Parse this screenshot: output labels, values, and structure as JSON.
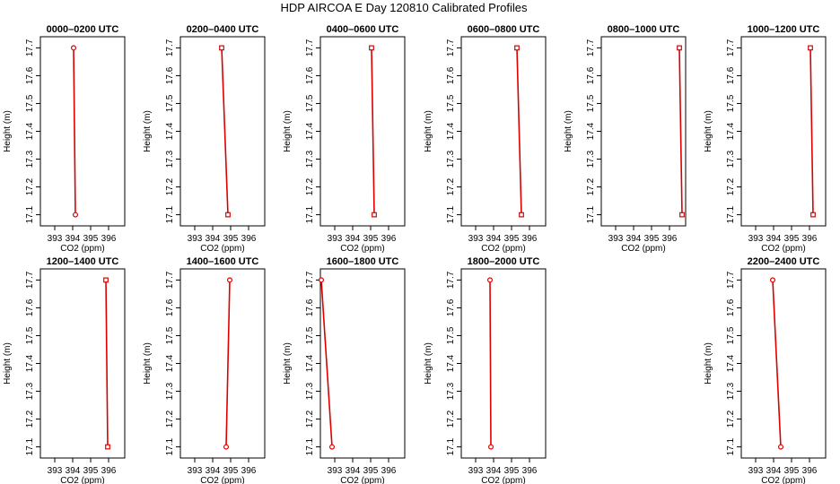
{
  "figure": {
    "title": "HDP AIRCOA E  Day 120810  Calibrated Profiles"
  },
  "style": {
    "line_color": "#dd0000",
    "marker_color": "#dd0000",
    "axis_color": "#000000"
  },
  "chart_data": [
    {
      "type": "line",
      "title": "0000–0200 UTC",
      "xlabel": "CO2 (ppm)",
      "ylabel": "Height (m)",
      "xlim": [
        392.2,
        396.9
      ],
      "ylim": [
        17.06,
        17.74
      ],
      "xticks": [
        "393",
        "394",
        "395",
        "396"
      ],
      "yticks": [
        "17.1",
        "17.2",
        "17.3",
        "17.4",
        "17.5",
        "17.6",
        "17.7"
      ],
      "grid": false,
      "marker": "circle",
      "series": [
        {
          "x": [
            394.05,
            394.15
          ],
          "y": [
            17.7,
            17.1
          ]
        }
      ]
    },
    {
      "type": "line",
      "title": "0200–0400 UTC",
      "xlabel": "CO2 (ppm)",
      "ylabel": "Height (m)",
      "xlim": [
        392.2,
        396.9
      ],
      "ylim": [
        17.06,
        17.74
      ],
      "xticks": [
        "393",
        "394",
        "395",
        "396"
      ],
      "yticks": [
        "17.1",
        "17.2",
        "17.3",
        "17.4",
        "17.5",
        "17.6",
        "17.7"
      ],
      "grid": false,
      "marker": "square",
      "series": [
        {
          "x": [
            394.5,
            394.85
          ],
          "y": [
            17.7,
            17.1
          ]
        }
      ]
    },
    {
      "type": "line",
      "title": "0400–0600 UTC",
      "xlabel": "CO2 (ppm)",
      "ylabel": "Height (m)",
      "xlim": [
        392.2,
        396.9
      ],
      "ylim": [
        17.06,
        17.74
      ],
      "xticks": [
        "393",
        "394",
        "395",
        "396"
      ],
      "yticks": [
        "17.1",
        "17.2",
        "17.3",
        "17.4",
        "17.5",
        "17.6",
        "17.7"
      ],
      "grid": false,
      "marker": "square",
      "series": [
        {
          "x": [
            395.05,
            395.2
          ],
          "y": [
            17.7,
            17.1
          ]
        }
      ]
    },
    {
      "type": "line",
      "title": "0600–0800 UTC",
      "xlabel": "CO2 (ppm)",
      "ylabel": "Height (m)",
      "xlim": [
        392.2,
        396.9
      ],
      "ylim": [
        17.06,
        17.74
      ],
      "xticks": [
        "393",
        "394",
        "395",
        "396"
      ],
      "yticks": [
        "17.1",
        "17.2",
        "17.3",
        "17.4",
        "17.5",
        "17.6",
        "17.7"
      ],
      "grid": false,
      "marker": "square",
      "series": [
        {
          "x": [
            395.3,
            395.55
          ],
          "y": [
            17.7,
            17.1
          ]
        }
      ]
    },
    {
      "type": "line",
      "title": "0800–1000 UTC",
      "xlabel": "CO2 (ppm)",
      "ylabel": "Height (m)",
      "xlim": [
        392.2,
        396.9
      ],
      "ylim": [
        17.06,
        17.74
      ],
      "xticks": [
        "393",
        "394",
        "395",
        "396"
      ],
      "yticks": [
        "17.1",
        "17.2",
        "17.3",
        "17.4",
        "17.5",
        "17.6",
        "17.7"
      ],
      "grid": false,
      "marker": "square",
      "series": [
        {
          "x": [
            396.55,
            396.7
          ],
          "y": [
            17.7,
            17.1
          ]
        }
      ]
    },
    {
      "type": "line",
      "title": "1000–1200 UTC",
      "xlabel": "CO2 (ppm)",
      "ylabel": "Height (m)",
      "xlim": [
        392.2,
        396.9
      ],
      "ylim": [
        17.06,
        17.74
      ],
      "xticks": [
        "393",
        "394",
        "395",
        "396"
      ],
      "yticks": [
        "17.1",
        "17.2",
        "17.3",
        "17.4",
        "17.5",
        "17.6",
        "17.7"
      ],
      "grid": false,
      "marker": "square",
      "series": [
        {
          "x": [
            396.05,
            396.2
          ],
          "y": [
            17.7,
            17.1
          ]
        }
      ]
    },
    {
      "type": "line",
      "title": "1200–1400 UTC",
      "xlabel": "CO2 (ppm)",
      "ylabel": "Height (m)",
      "xlim": [
        392.2,
        396.9
      ],
      "ylim": [
        17.06,
        17.74
      ],
      "xticks": [
        "393",
        "394",
        "395",
        "396"
      ],
      "yticks": [
        "17.1",
        "17.2",
        "17.3",
        "17.4",
        "17.5",
        "17.6",
        "17.7"
      ],
      "grid": false,
      "marker": "square",
      "series": [
        {
          "x": [
            395.85,
            395.95
          ],
          "y": [
            17.7,
            17.1
          ]
        }
      ]
    },
    {
      "type": "line",
      "title": "1400–1600 UTC",
      "xlabel": "CO2 (ppm)",
      "ylabel": "Height (m)",
      "xlim": [
        392.2,
        396.9
      ],
      "ylim": [
        17.06,
        17.74
      ],
      "xticks": [
        "393",
        "394",
        "395",
        "396"
      ],
      "yticks": [
        "17.1",
        "17.2",
        "17.3",
        "17.4",
        "17.5",
        "17.6",
        "17.7"
      ],
      "grid": false,
      "marker": "circle",
      "series": [
        {
          "x": [
            394.95,
            394.75
          ],
          "y": [
            17.7,
            17.1
          ]
        }
      ]
    },
    {
      "type": "line",
      "title": "1600–1800 UTC",
      "xlabel": "CO2 (ppm)",
      "ylabel": "Height (m)",
      "xlim": [
        392.2,
        396.9
      ],
      "ylim": [
        17.06,
        17.74
      ],
      "xticks": [
        "393",
        "394",
        "395",
        "396"
      ],
      "yticks": [
        "17.1",
        "17.2",
        "17.3",
        "17.4",
        "17.5",
        "17.6",
        "17.7"
      ],
      "grid": false,
      "marker": "circle",
      "series": [
        {
          "x": [
            392.25,
            392.85
          ],
          "y": [
            17.7,
            17.1
          ]
        }
      ]
    },
    {
      "type": "line",
      "title": "1800–2000 UTC",
      "xlabel": "CO2 (ppm)",
      "ylabel": "Height (m)",
      "xlim": [
        392.2,
        396.9
      ],
      "ylim": [
        17.06,
        17.74
      ],
      "xticks": [
        "393",
        "394",
        "395",
        "396"
      ],
      "yticks": [
        "17.1",
        "17.2",
        "17.3",
        "17.4",
        "17.5",
        "17.6",
        "17.7"
      ],
      "grid": false,
      "marker": "circle",
      "series": [
        {
          "x": [
            393.8,
            393.85
          ],
          "y": [
            17.7,
            17.1
          ]
        }
      ]
    },
    {
      "type": "line",
      "title": "2200–2400 UTC",
      "xlabel": "CO2 (ppm)",
      "ylabel": "Height (m)",
      "xlim": [
        392.2,
        396.9
      ],
      "ylim": [
        17.06,
        17.74
      ],
      "xticks": [
        "393",
        "394",
        "395",
        "396"
      ],
      "yticks": [
        "17.1",
        "17.2",
        "17.3",
        "17.4",
        "17.5",
        "17.6",
        "17.7"
      ],
      "grid": false,
      "marker": "circle",
      "series": [
        {
          "x": [
            393.95,
            394.4
          ],
          "y": [
            17.7,
            17.1
          ]
        }
      ]
    }
  ]
}
